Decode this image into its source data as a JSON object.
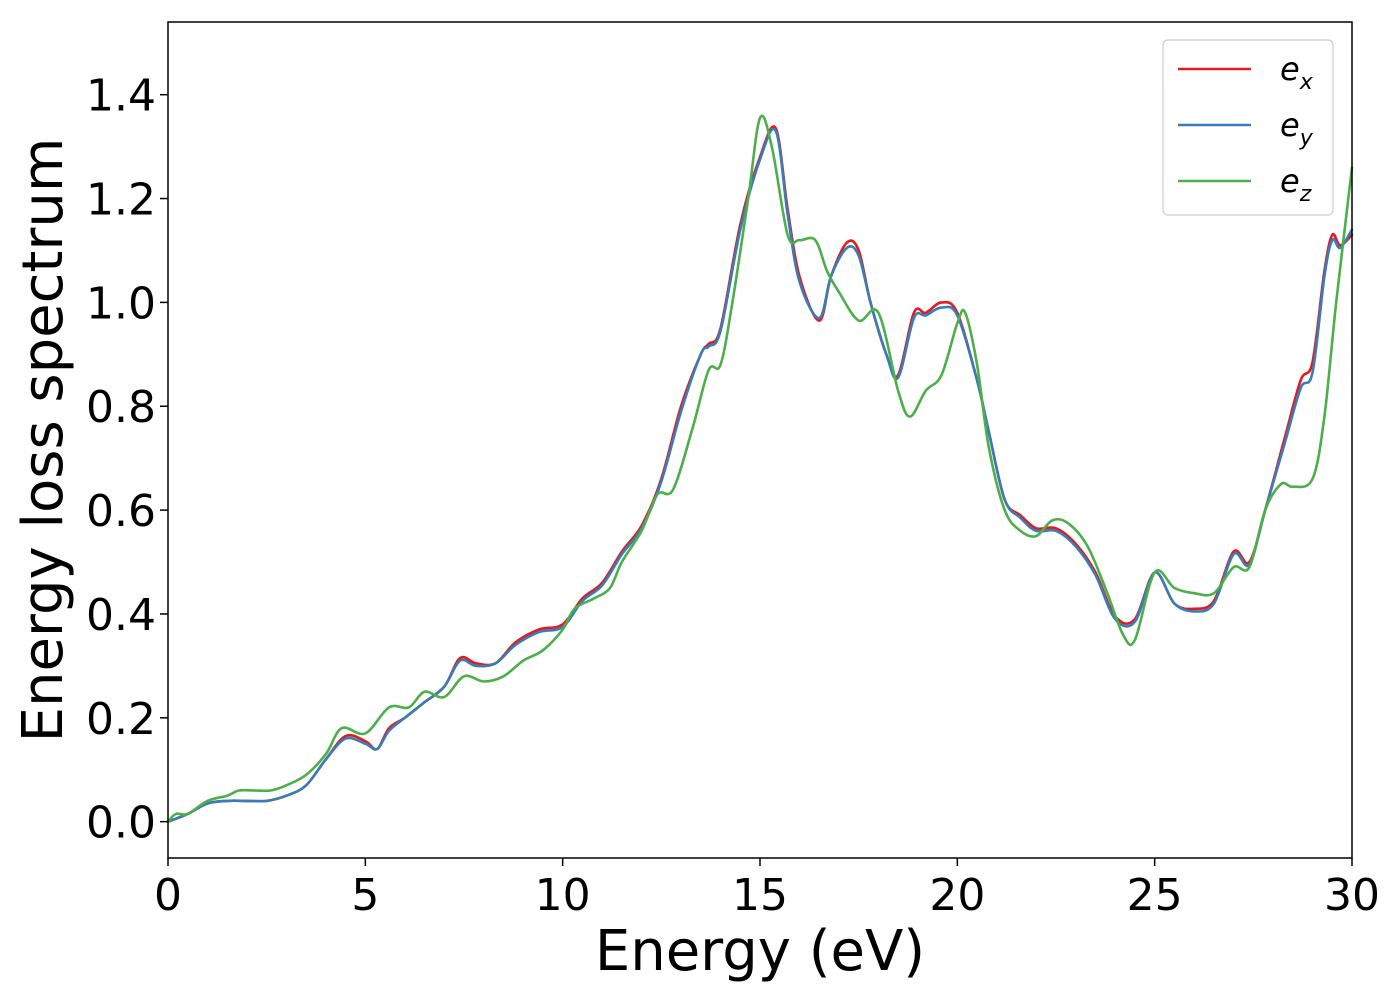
{
  "chart_data": {
    "type": "line",
    "title": "",
    "xlabel": "Energy (eV)",
    "ylabel": "Energy loss spectrum",
    "xlim": [
      0,
      30
    ],
    "ylim": [
      -0.07,
      1.54
    ],
    "xticks": [
      0,
      5,
      10,
      15,
      20,
      25,
      30
    ],
    "xtick_labels": [
      "0",
      "5",
      "10",
      "15",
      "20",
      "25",
      "30"
    ],
    "yticks": [
      0.0,
      0.2,
      0.4,
      0.6,
      0.8,
      1.0,
      1.2,
      1.4
    ],
    "ytick_labels": [
      "0.0",
      "0.2",
      "0.4",
      "0.6",
      "0.8",
      "1.0",
      "1.2",
      "1.4"
    ],
    "grid": false,
    "legend_position": "top-right",
    "series": [
      {
        "name": "e_x",
        "legend_base": "e",
        "legend_sub": "x",
        "color": "#e41a1c",
        "points": [
          [
            0,
            0.0
          ],
          [
            0.5,
            0.015
          ],
          [
            1.0,
            0.035
          ],
          [
            1.5,
            0.04
          ],
          [
            2.0,
            0.04
          ],
          [
            2.5,
            0.04
          ],
          [
            3.0,
            0.05
          ],
          [
            3.5,
            0.07
          ],
          [
            4.0,
            0.12
          ],
          [
            4.5,
            0.165
          ],
          [
            5.0,
            0.155
          ],
          [
            5.3,
            0.14
          ],
          [
            5.6,
            0.18
          ],
          [
            6.0,
            0.2
          ],
          [
            6.5,
            0.23
          ],
          [
            7.0,
            0.26
          ],
          [
            7.4,
            0.315
          ],
          [
            7.8,
            0.305
          ],
          [
            8.3,
            0.305
          ],
          [
            8.8,
            0.345
          ],
          [
            9.4,
            0.37
          ],
          [
            10.0,
            0.38
          ],
          [
            10.5,
            0.43
          ],
          [
            11.0,
            0.46
          ],
          [
            11.5,
            0.52
          ],
          [
            12.0,
            0.57
          ],
          [
            12.5,
            0.66
          ],
          [
            13.0,
            0.8
          ],
          [
            13.5,
            0.9
          ],
          [
            13.7,
            0.92
          ],
          [
            14.0,
            0.95
          ],
          [
            14.5,
            1.15
          ],
          [
            15.0,
            1.28
          ],
          [
            15.4,
            1.335
          ],
          [
            15.7,
            1.18
          ],
          [
            16.0,
            1.05
          ],
          [
            16.5,
            0.965
          ],
          [
            16.8,
            1.05
          ],
          [
            17.2,
            1.115
          ],
          [
            17.5,
            1.1
          ],
          [
            17.8,
            1.0
          ],
          [
            18.2,
            0.9
          ],
          [
            18.5,
            0.86
          ],
          [
            18.9,
            0.98
          ],
          [
            19.2,
            0.98
          ],
          [
            19.6,
            1.0
          ],
          [
            20.0,
            0.98
          ],
          [
            20.5,
            0.85
          ],
          [
            20.8,
            0.75
          ],
          [
            21.2,
            0.62
          ],
          [
            21.6,
            0.59
          ],
          [
            22.0,
            0.565
          ],
          [
            22.5,
            0.565
          ],
          [
            23.0,
            0.535
          ],
          [
            23.5,
            0.48
          ],
          [
            24.0,
            0.395
          ],
          [
            24.5,
            0.39
          ],
          [
            25.0,
            0.48
          ],
          [
            25.5,
            0.42
          ],
          [
            26.0,
            0.41
          ],
          [
            26.5,
            0.425
          ],
          [
            27.0,
            0.52
          ],
          [
            27.4,
            0.5
          ],
          [
            27.8,
            0.6
          ],
          [
            28.3,
            0.74
          ],
          [
            28.7,
            0.85
          ],
          [
            29.0,
            0.885
          ],
          [
            29.3,
            1.06
          ],
          [
            29.5,
            1.13
          ],
          [
            29.7,
            1.11
          ],
          [
            30.0,
            1.13
          ]
        ]
      },
      {
        "name": "e_y",
        "legend_base": "e",
        "legend_sub": "y",
        "color": "#377eb8",
        "points": [
          [
            0,
            0.0
          ],
          [
            0.5,
            0.015
          ],
          [
            1.0,
            0.035
          ],
          [
            1.5,
            0.04
          ],
          [
            2.0,
            0.04
          ],
          [
            2.5,
            0.04
          ],
          [
            3.0,
            0.05
          ],
          [
            3.5,
            0.07
          ],
          [
            4.0,
            0.12
          ],
          [
            4.5,
            0.16
          ],
          [
            5.0,
            0.15
          ],
          [
            5.3,
            0.14
          ],
          [
            5.6,
            0.175
          ],
          [
            6.0,
            0.2
          ],
          [
            6.5,
            0.23
          ],
          [
            7.0,
            0.26
          ],
          [
            7.4,
            0.31
          ],
          [
            7.8,
            0.3
          ],
          [
            8.3,
            0.305
          ],
          [
            8.8,
            0.34
          ],
          [
            9.4,
            0.365
          ],
          [
            10.0,
            0.375
          ],
          [
            10.5,
            0.425
          ],
          [
            11.0,
            0.455
          ],
          [
            11.5,
            0.515
          ],
          [
            12.0,
            0.565
          ],
          [
            12.5,
            0.655
          ],
          [
            13.0,
            0.79
          ],
          [
            13.5,
            0.9
          ],
          [
            13.7,
            0.915
          ],
          [
            14.0,
            0.945
          ],
          [
            14.5,
            1.14
          ],
          [
            15.0,
            1.275
          ],
          [
            15.4,
            1.33
          ],
          [
            15.7,
            1.17
          ],
          [
            16.0,
            1.04
          ],
          [
            16.5,
            0.97
          ],
          [
            16.8,
            1.05
          ],
          [
            17.2,
            1.105
          ],
          [
            17.5,
            1.09
          ],
          [
            17.8,
            1.0
          ],
          [
            18.2,
            0.9
          ],
          [
            18.5,
            0.855
          ],
          [
            18.9,
            0.97
          ],
          [
            19.2,
            0.975
          ],
          [
            19.6,
            0.99
          ],
          [
            20.0,
            0.975
          ],
          [
            20.5,
            0.85
          ],
          [
            20.8,
            0.75
          ],
          [
            21.2,
            0.62
          ],
          [
            21.6,
            0.585
          ],
          [
            22.0,
            0.56
          ],
          [
            22.5,
            0.56
          ],
          [
            23.0,
            0.53
          ],
          [
            23.5,
            0.475
          ],
          [
            24.0,
            0.39
          ],
          [
            24.5,
            0.385
          ],
          [
            25.0,
            0.48
          ],
          [
            25.5,
            0.42
          ],
          [
            26.0,
            0.405
          ],
          [
            26.5,
            0.42
          ],
          [
            27.0,
            0.515
          ],
          [
            27.4,
            0.495
          ],
          [
            27.8,
            0.6
          ],
          [
            28.3,
            0.73
          ],
          [
            28.7,
            0.835
          ],
          [
            29.0,
            0.865
          ],
          [
            29.3,
            1.05
          ],
          [
            29.5,
            1.12
          ],
          [
            29.7,
            1.105
          ],
          [
            30.0,
            1.14
          ]
        ]
      },
      {
        "name": "e_z",
        "legend_base": "e",
        "legend_sub": "z",
        "color": "#4daf4a",
        "points": [
          [
            0,
            0.0
          ],
          [
            0.2,
            0.015
          ],
          [
            0.5,
            0.015
          ],
          [
            1.0,
            0.04
          ],
          [
            1.5,
            0.05
          ],
          [
            1.8,
            0.06
          ],
          [
            2.2,
            0.06
          ],
          [
            2.6,
            0.06
          ],
          [
            3.0,
            0.07
          ],
          [
            3.5,
            0.09
          ],
          [
            4.0,
            0.13
          ],
          [
            4.4,
            0.18
          ],
          [
            5.0,
            0.17
          ],
          [
            5.6,
            0.22
          ],
          [
            6.1,
            0.22
          ],
          [
            6.5,
            0.25
          ],
          [
            7.0,
            0.24
          ],
          [
            7.5,
            0.28
          ],
          [
            8.0,
            0.27
          ],
          [
            8.5,
            0.28
          ],
          [
            9.0,
            0.31
          ],
          [
            9.5,
            0.33
          ],
          [
            10.0,
            0.37
          ],
          [
            10.3,
            0.41
          ],
          [
            10.8,
            0.43
          ],
          [
            11.2,
            0.45
          ],
          [
            11.5,
            0.5
          ],
          [
            12.0,
            0.56
          ],
          [
            12.4,
            0.63
          ],
          [
            12.8,
            0.64
          ],
          [
            13.3,
            0.76
          ],
          [
            13.7,
            0.87
          ],
          [
            14.0,
            0.88
          ],
          [
            14.3,
            1.0
          ],
          [
            14.7,
            1.2
          ],
          [
            15.0,
            1.355
          ],
          [
            15.3,
            1.3
          ],
          [
            15.7,
            1.13
          ],
          [
            16.0,
            1.12
          ],
          [
            16.4,
            1.12
          ],
          [
            16.7,
            1.06
          ],
          [
            17.0,
            1.02
          ],
          [
            17.5,
            0.965
          ],
          [
            18.0,
            0.98
          ],
          [
            18.5,
            0.83
          ],
          [
            18.8,
            0.78
          ],
          [
            19.2,
            0.83
          ],
          [
            19.6,
            0.86
          ],
          [
            20.0,
            0.96
          ],
          [
            20.2,
            0.98
          ],
          [
            20.5,
            0.88
          ],
          [
            20.8,
            0.72
          ],
          [
            21.2,
            0.6
          ],
          [
            21.6,
            0.56
          ],
          [
            22.0,
            0.55
          ],
          [
            22.4,
            0.58
          ],
          [
            22.8,
            0.575
          ],
          [
            23.3,
            0.53
          ],
          [
            23.8,
            0.44
          ],
          [
            24.2,
            0.36
          ],
          [
            24.5,
            0.35
          ],
          [
            25.0,
            0.48
          ],
          [
            25.5,
            0.45
          ],
          [
            26.0,
            0.44
          ],
          [
            26.5,
            0.44
          ],
          [
            27.0,
            0.49
          ],
          [
            27.4,
            0.49
          ],
          [
            27.8,
            0.6
          ],
          [
            28.2,
            0.65
          ],
          [
            28.5,
            0.645
          ],
          [
            29.0,
            0.66
          ],
          [
            29.3,
            0.78
          ],
          [
            29.6,
            1.0
          ],
          [
            30.0,
            1.26
          ]
        ]
      }
    ]
  }
}
